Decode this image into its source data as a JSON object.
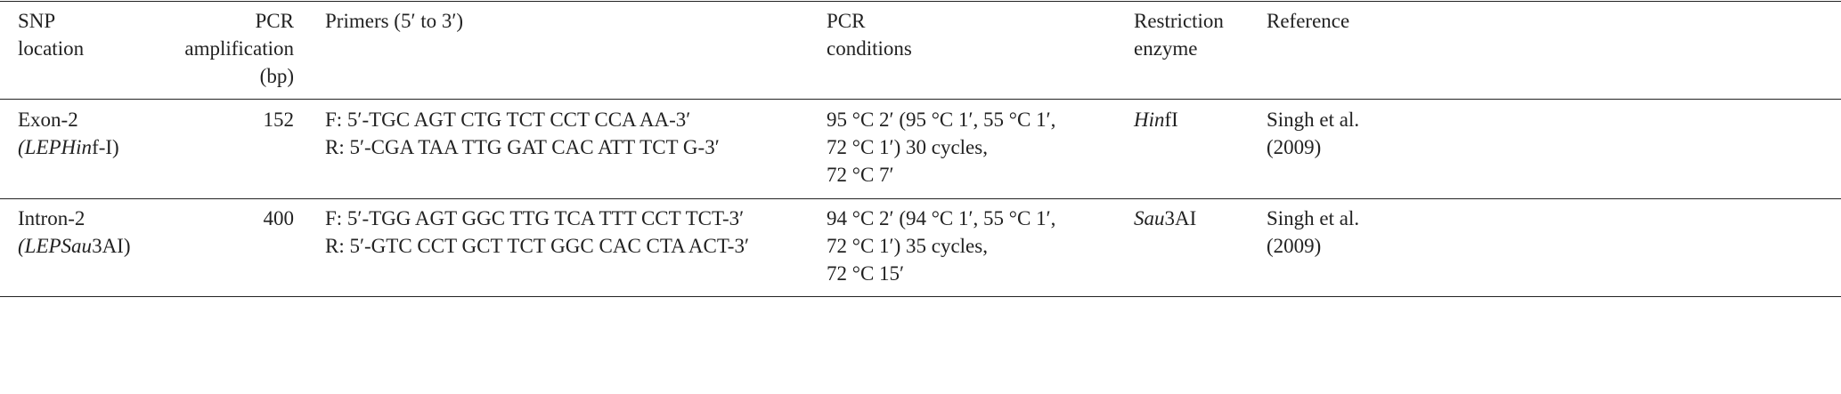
{
  "table": {
    "header": {
      "snp": [
        "SNP",
        "location"
      ],
      "size": [
        "PCR",
        "amplification",
        "(bp)"
      ],
      "primers": [
        "Primers (5′ to 3′)"
      ],
      "conditions": [
        "PCR",
        "conditions"
      ],
      "enzyme": [
        "Restriction",
        "enzyme"
      ],
      "reference": [
        "Reference"
      ]
    },
    "rows": [
      {
        "snp": [
          "Exon-2",
          "(LEPHin",
          "f-I)"
        ],
        "size": 152,
        "primers": [
          "F: 5′-TGC AGT CTG TCT CCT CCA AA-3′",
          "R: 5′-CGA TAA TTG GAT CAC ATT TCT G-3′"
        ],
        "conditions": [
          "95 °C 2′ (95 °C 1′, 55 °C 1′,",
          "72 °C 1′) 30 cycles,",
          "72 °C 7′"
        ],
        "enzyme": [
          "Hin",
          "fI"
        ],
        "reference": [
          "Singh et al.",
          "(2009)"
        ]
      },
      {
        "snp": [
          "Intron-2",
          "(LEPSau",
          "3AI)"
        ],
        "size": 400,
        "primers": [
          "F: 5′-TGG AGT GGC TTG TCA TTT CCT TCT-3′",
          "R: 5′-GTC CCT GCT TCT GGC CAC CTA ACT-3′"
        ],
        "conditions": [
          "94 °C 2′ (94 °C 1′, 55 °C 1′,",
          "72 °C 1′) 35 cycles,",
          "72 °C 15′"
        ],
        "enzyme": [
          "Sau",
          "3AI"
        ],
        "reference": [
          "Singh et al.",
          "(2009)"
        ]
      }
    ]
  }
}
